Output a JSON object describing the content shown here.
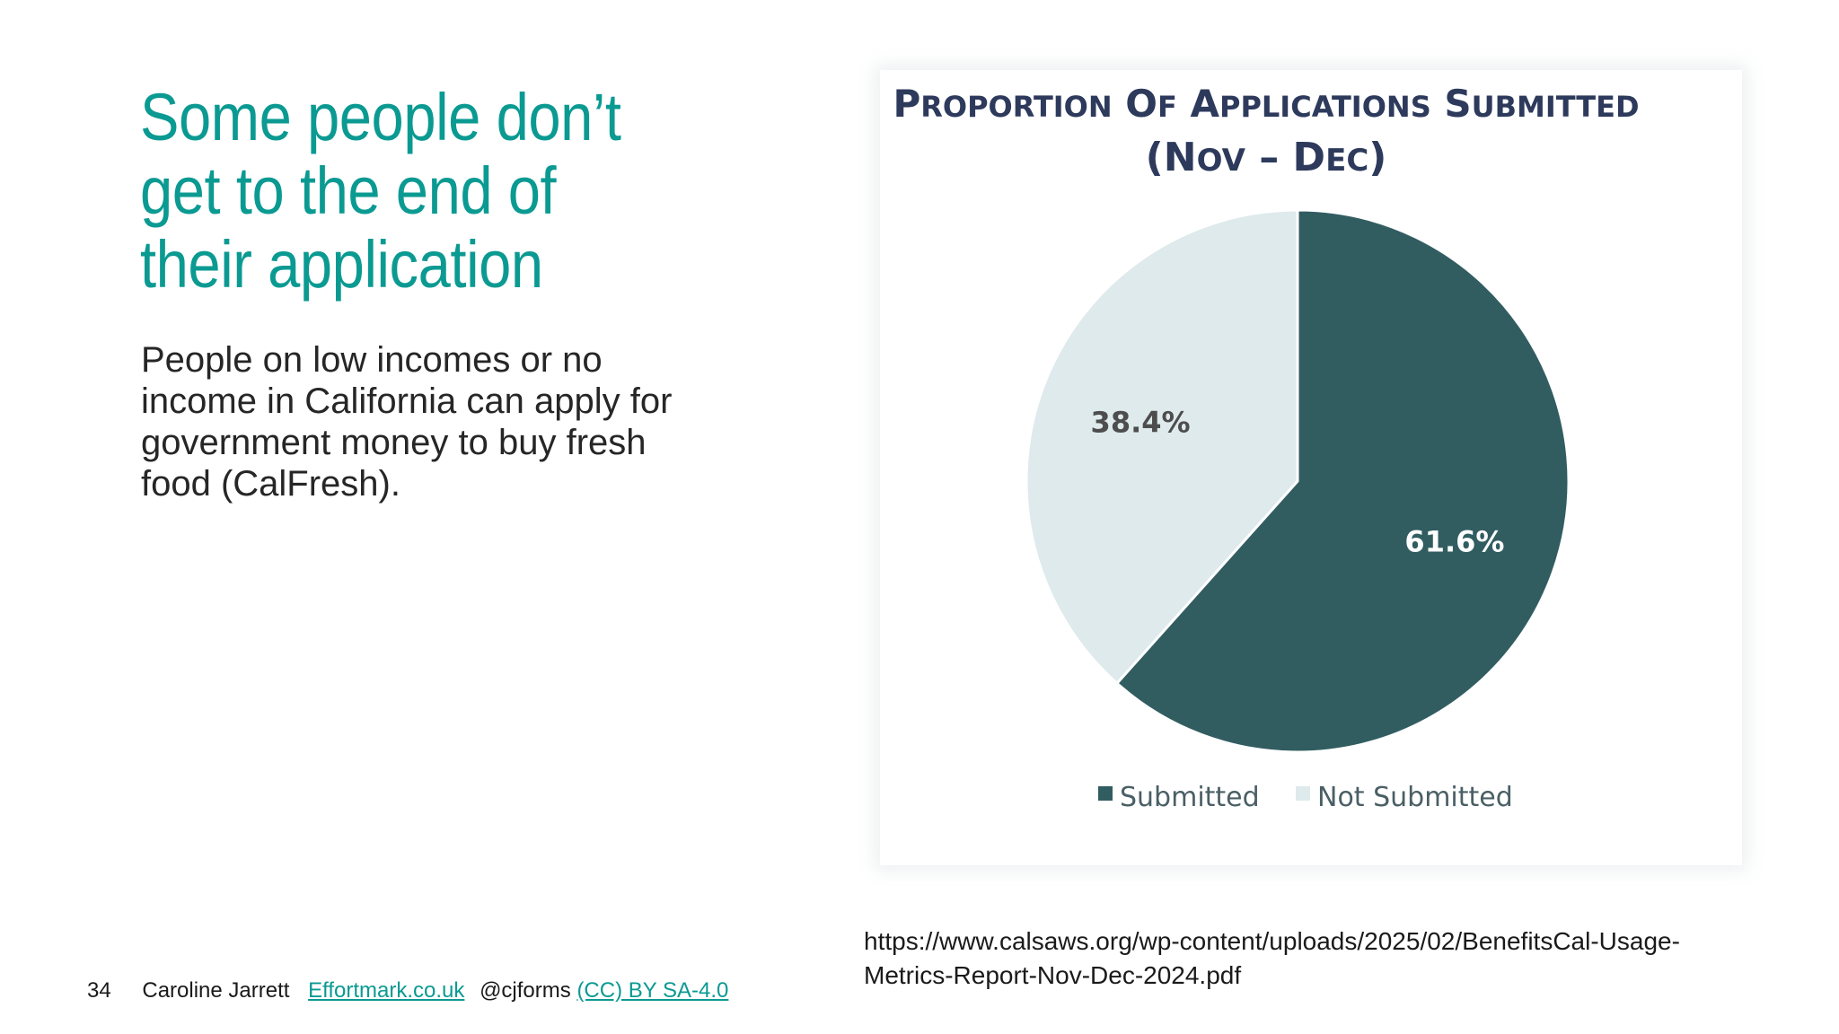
{
  "slide": {
    "title": "Some people don’t get to the end of their application",
    "body": "People on low incomes or no income in California can apply for government money to buy fresh food (CalFresh).",
    "source_url": "https://www.calsaws.org/wp-content/uploads/2025/02/BenefitsCal-Usage-Metrics-Report-Nov-Dec-2024.pdf"
  },
  "footer": {
    "slide_number": "34",
    "author": "Caroline Jarrett",
    "website_link": "Effortmark.co.uk",
    "handle": "@cjforms",
    "license_link": "(CC) BY SA-4.0"
  },
  "colors": {
    "title_teal": "#0b9a92",
    "submitted": "#315d61",
    "not_submitted": "#deeaec",
    "chart_title": "#2d3a5c"
  },
  "chart_data": {
    "type": "pie",
    "title_line1": "Proportion Of Applications Submitted",
    "title_line2": "(Nov – Dec)",
    "categories": [
      "Submitted",
      "Not Submitted"
    ],
    "values": [
      61.6,
      38.4
    ],
    "value_labels": [
      "61.6%",
      "38.4%"
    ],
    "unit": "%",
    "legend_position": "bottom"
  }
}
